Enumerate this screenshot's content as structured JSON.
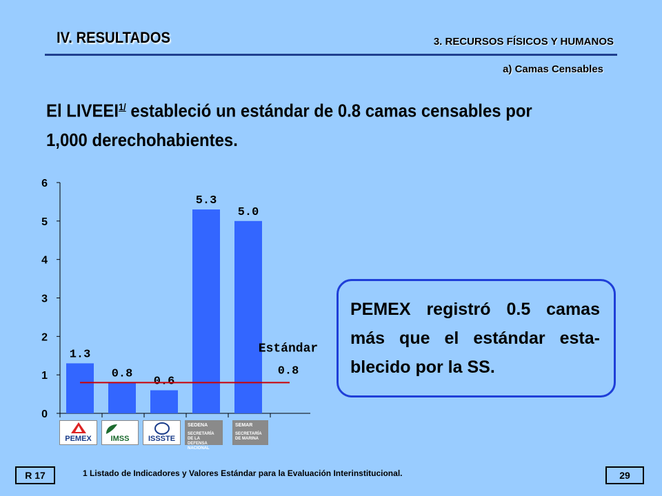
{
  "header": {
    "section_title": "IV. RESULTADOS",
    "subsection": "3. RECURSOS FÍSICOS Y HUMANOS",
    "subheading": "a) Camas Censables"
  },
  "headline": {
    "text_before": "El LIVEEI",
    "footnote_ref": "1/",
    "text_after": " estableció un estándar de 0.8 camas censables por",
    "line2": "1,000 derechohabientes."
  },
  "chart_data": {
    "type": "bar",
    "categories": [
      "PEMEX",
      "IMSS",
      "ISSSTE",
      "SEDENA",
      "SEMAR"
    ],
    "values": [
      1.3,
      0.8,
      0.6,
      5.3,
      5.0
    ],
    "value_labels": [
      "1.3",
      "0.8",
      "0.6",
      "5.3",
      "5.0"
    ],
    "ylim": [
      0,
      6
    ],
    "yticks": [
      "0",
      "1",
      "2",
      "3",
      "4",
      "5",
      "6"
    ],
    "standard": {
      "label": "Estándar",
      "value": 0.8,
      "value_label": "0.8"
    },
    "bar_color": "#3366ff",
    "line_color": "#cc0000",
    "title": "",
    "xlabel": "",
    "ylabel": ""
  },
  "logos": {
    "pemex": "PEMEX",
    "imss": "IMSS",
    "issste": "ISSSTE",
    "sedena": "SEDENA",
    "sedena_sub": "SECRETARÍA DE LA DEFENSA NACIONAL",
    "semar": "SEMAR",
    "semar_sub": "SECRETARÍA DE MARINA"
  },
  "note": {
    "text": "PEMEX registró 0.5 camas más que el estándar esta-blecido por la SS."
  },
  "footer": {
    "left_label": "R 17",
    "footnote": "1 Listado de Indicadores y Valores Estándar para la Evaluación Interinstitucional.",
    "page_number": "29"
  }
}
